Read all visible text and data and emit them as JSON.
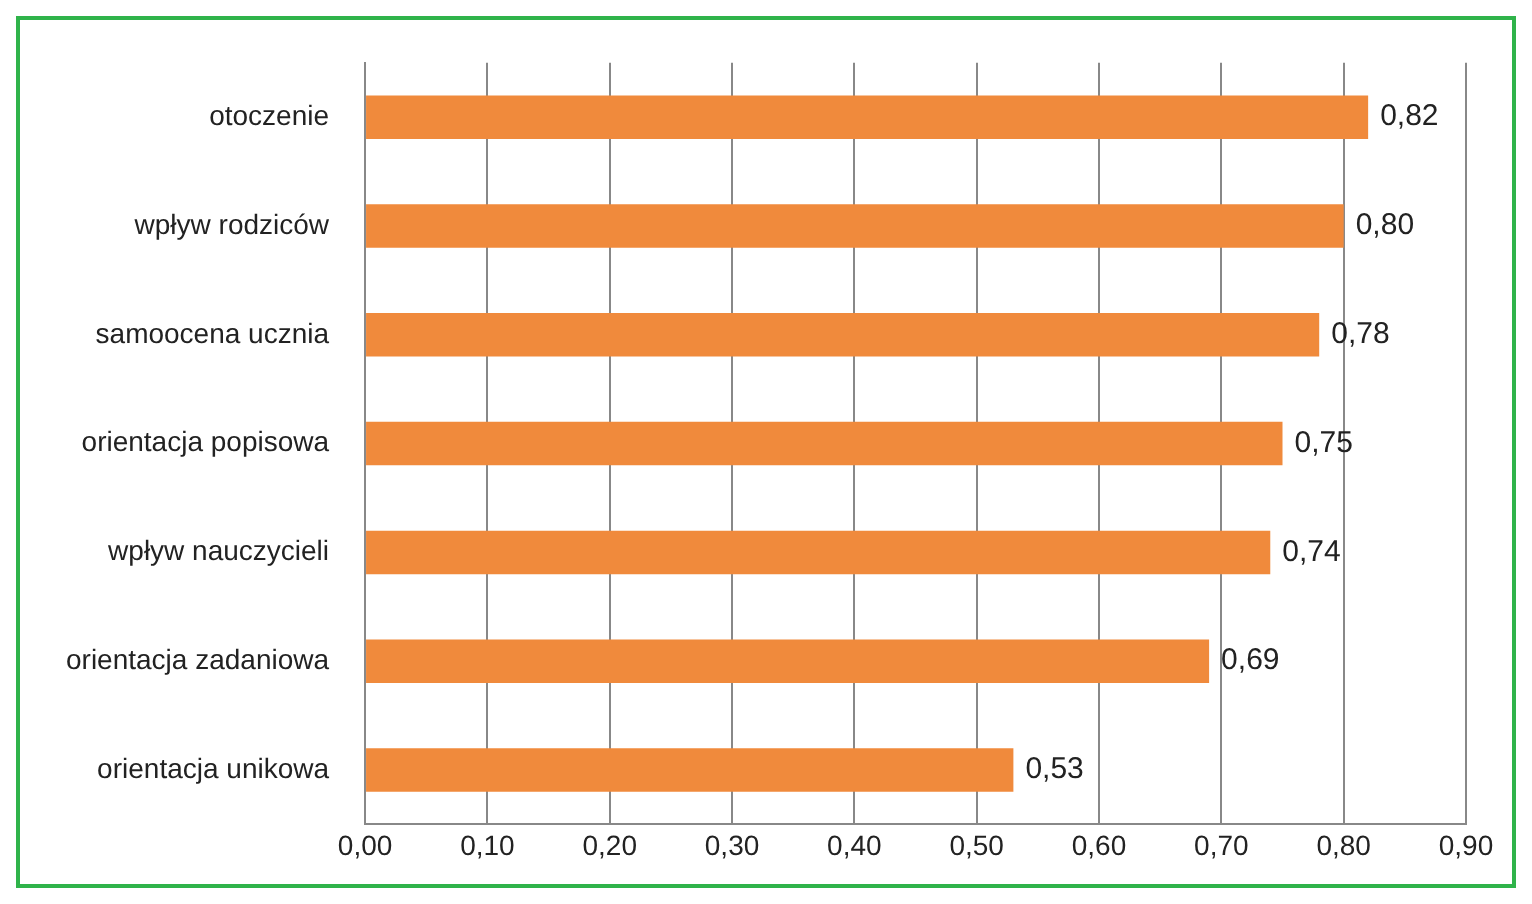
{
  "chart_data": {
    "type": "bar",
    "orientation": "horizontal",
    "categories": [
      "otoczenie",
      "wpływ rodziców",
      "samoocena ucznia",
      "orientacja popisowa",
      "wpływ nauczycieli",
      "orientacja zadaniowa",
      "orientacja unikowa"
    ],
    "values": [
      0.82,
      0.8,
      0.78,
      0.75,
      0.74,
      0.69,
      0.53
    ],
    "value_labels": [
      "0,82",
      "0,80",
      "0,78",
      "0,75",
      "0,74",
      "0,69",
      "0,53"
    ],
    "color": "#f08a3c",
    "xlim": [
      0,
      0.9
    ],
    "xticks": [
      {
        "value": 0,
        "label": "0,00"
      },
      {
        "value": 0.1,
        "label": "0,10"
      },
      {
        "value": 0.2,
        "label": "0,20"
      },
      {
        "value": 0.3,
        "label": "0,30"
      },
      {
        "value": 0.4,
        "label": "0,40"
      },
      {
        "value": 0.5,
        "label": "0,50"
      },
      {
        "value": 0.6,
        "label": "0,60"
      },
      {
        "value": 0.7,
        "label": "0,70"
      },
      {
        "value": 0.8,
        "label": "0,80"
      },
      {
        "value": 0.9,
        "label": "0,90"
      }
    ],
    "grid": "x",
    "legend": false
  }
}
